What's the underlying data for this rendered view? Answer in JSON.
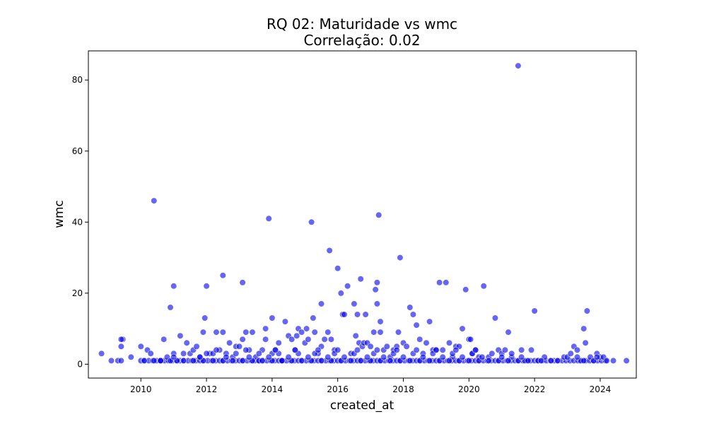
{
  "chart_data": {
    "type": "scatter",
    "title": "RQ 02: Maturidade vs wmc",
    "subtitle": "Correlação: 0.02",
    "xlabel": "created_at",
    "ylabel": "wmc",
    "xlim": [
      2008.4,
      2025.1
    ],
    "ylim": [
      -3.9,
      88.2
    ],
    "xticks": [
      2010,
      2012,
      2014,
      2016,
      2018,
      2020,
      2022,
      2024
    ],
    "yticks": [
      0,
      20,
      40,
      60,
      80
    ],
    "grid": false,
    "legend": "none",
    "color": "#0000ee",
    "points": [
      [
        2008.8,
        3
      ],
      [
        2009.1,
        1
      ],
      [
        2009.3,
        1
      ],
      [
        2009.4,
        1
      ],
      [
        2009.4,
        5
      ],
      [
        2009.45,
        7
      ],
      [
        2009.4,
        7
      ],
      [
        2009.7,
        2
      ],
      [
        2010.0,
        5
      ],
      [
        2010.1,
        1
      ],
      [
        2010.2,
        4
      ],
      [
        2010.3,
        3
      ],
      [
        2010.4,
        1
      ],
      [
        2010.4,
        46
      ],
      [
        2010.6,
        1
      ],
      [
        2010.7,
        7
      ],
      [
        2010.8,
        2
      ],
      [
        2010.9,
        16
      ],
      [
        2011.0,
        22
      ],
      [
        2011.0,
        3
      ],
      [
        2011.1,
        1
      ],
      [
        2011.2,
        8
      ],
      [
        2011.3,
        3
      ],
      [
        2011.4,
        6
      ],
      [
        2011.5,
        3
      ],
      [
        2011.6,
        4
      ],
      [
        2011.7,
        5
      ],
      [
        2011.8,
        2
      ],
      [
        2011.9,
        9
      ],
      [
        2011.95,
        13
      ],
      [
        2012.0,
        22
      ],
      [
        2012.1,
        3
      ],
      [
        2012.2,
        3
      ],
      [
        2012.3,
        9
      ],
      [
        2012.4,
        4
      ],
      [
        2012.5,
        25
      ],
      [
        2012.5,
        9
      ],
      [
        2012.6,
        3
      ],
      [
        2012.7,
        6
      ],
      [
        2012.8,
        2
      ],
      [
        2012.9,
        5
      ],
      [
        2013.0,
        5
      ],
      [
        2013.1,
        23
      ],
      [
        2013.1,
        7
      ],
      [
        2013.2,
        9
      ],
      [
        2013.3,
        4
      ],
      [
        2013.4,
        9
      ],
      [
        2013.5,
        2
      ],
      [
        2013.6,
        1
      ],
      [
        2013.7,
        4
      ],
      [
        2013.8,
        10
      ],
      [
        2013.8,
        7
      ],
      [
        2013.9,
        41
      ],
      [
        2014.0,
        13
      ],
      [
        2014.0,
        3
      ],
      [
        2014.1,
        4
      ],
      [
        2014.2,
        6
      ],
      [
        2014.3,
        1
      ],
      [
        2014.4,
        12
      ],
      [
        2014.5,
        8
      ],
      [
        2014.6,
        7
      ],
      [
        2014.7,
        4
      ],
      [
        2014.75,
        8
      ],
      [
        2014.8,
        10
      ],
      [
        2014.9,
        9
      ],
      [
        2015.0,
        6
      ],
      [
        2015.05,
        10
      ],
      [
        2015.1,
        7
      ],
      [
        2015.2,
        40
      ],
      [
        2015.25,
        13
      ],
      [
        2015.3,
        9
      ],
      [
        2015.4,
        3
      ],
      [
        2015.5,
        5
      ],
      [
        2015.5,
        17
      ],
      [
        2015.6,
        7
      ],
      [
        2015.7,
        9
      ],
      [
        2015.75,
        32
      ],
      [
        2015.8,
        7
      ],
      [
        2015.9,
        4
      ],
      [
        2016.0,
        27
      ],
      [
        2016.1,
        20
      ],
      [
        2016.15,
        14
      ],
      [
        2016.2,
        14
      ],
      [
        2016.3,
        22
      ],
      [
        2016.4,
        3
      ],
      [
        2016.5,
        17
      ],
      [
        2016.55,
        8
      ],
      [
        2016.6,
        14
      ],
      [
        2016.65,
        6
      ],
      [
        2016.7,
        24
      ],
      [
        2016.75,
        5
      ],
      [
        2016.8,
        6
      ],
      [
        2016.85,
        14
      ],
      [
        2016.9,
        6
      ],
      [
        2017.0,
        5
      ],
      [
        2017.1,
        9
      ],
      [
        2017.15,
        21
      ],
      [
        2017.2,
        23
      ],
      [
        2017.2,
        17
      ],
      [
        2017.25,
        42
      ],
      [
        2017.3,
        12
      ],
      [
        2017.3,
        9
      ],
      [
        2017.4,
        4
      ],
      [
        2017.5,
        5
      ],
      [
        2017.6,
        2
      ],
      [
        2017.7,
        4
      ],
      [
        2017.8,
        5
      ],
      [
        2017.85,
        9
      ],
      [
        2017.9,
        30
      ],
      [
        2018.0,
        6
      ],
      [
        2018.1,
        5
      ],
      [
        2018.2,
        16
      ],
      [
        2018.3,
        14
      ],
      [
        2018.4,
        11
      ],
      [
        2018.5,
        7
      ],
      [
        2018.6,
        3
      ],
      [
        2018.7,
        6
      ],
      [
        2018.8,
        12
      ],
      [
        2018.9,
        4
      ],
      [
        2019.0,
        4
      ],
      [
        2019.1,
        23
      ],
      [
        2019.2,
        4
      ],
      [
        2019.3,
        23
      ],
      [
        2019.4,
        6
      ],
      [
        2019.5,
        2
      ],
      [
        2019.6,
        5
      ],
      [
        2019.7,
        5
      ],
      [
        2019.8,
        10
      ],
      [
        2019.9,
        21
      ],
      [
        2020.0,
        7
      ],
      [
        2020.05,
        7
      ],
      [
        2020.1,
        3
      ],
      [
        2020.2,
        4
      ],
      [
        2020.3,
        2
      ],
      [
        2020.45,
        22
      ],
      [
        2020.6,
        2
      ],
      [
        2020.8,
        13
      ],
      [
        2020.9,
        4
      ],
      [
        2021.0,
        3
      ],
      [
        2021.1,
        4
      ],
      [
        2021.2,
        9
      ],
      [
        2021.3,
        2
      ],
      [
        2021.5,
        84
      ],
      [
        2021.6,
        4
      ],
      [
        2021.7,
        1
      ],
      [
        2021.9,
        4
      ],
      [
        2022.0,
        15
      ],
      [
        2022.1,
        1
      ],
      [
        2022.3,
        2
      ],
      [
        2022.5,
        1
      ],
      [
        2022.7,
        1
      ],
      [
        2022.9,
        2
      ],
      [
        2023.0,
        2
      ],
      [
        2023.1,
        3
      ],
      [
        2023.2,
        5
      ],
      [
        2023.3,
        4
      ],
      [
        2023.4,
        1
      ],
      [
        2023.5,
        10
      ],
      [
        2023.55,
        6
      ],
      [
        2023.6,
        15
      ],
      [
        2023.7,
        2
      ],
      [
        2023.8,
        1
      ],
      [
        2023.9,
        3
      ],
      [
        2024.0,
        2
      ],
      [
        2024.1,
        2
      ],
      [
        2024.2,
        1
      ],
      [
        2024.4,
        1
      ],
      [
        2024.8,
        1
      ],
      [
        2010.6,
        1
      ],
      [
        2010.9,
        1
      ],
      [
        2011.3,
        1
      ],
      [
        2011.6,
        1
      ],
      [
        2011.9,
        1
      ],
      [
        2012.2,
        1
      ],
      [
        2012.5,
        1
      ],
      [
        2012.8,
        1
      ],
      [
        2013.1,
        1
      ],
      [
        2013.4,
        1
      ],
      [
        2013.7,
        1
      ],
      [
        2014.0,
        1
      ],
      [
        2014.3,
        1
      ],
      [
        2014.6,
        1
      ],
      [
        2014.9,
        1
      ],
      [
        2015.2,
        1
      ],
      [
        2015.5,
        1
      ],
      [
        2015.8,
        1
      ],
      [
        2016.1,
        1
      ],
      [
        2016.4,
        1
      ],
      [
        2016.7,
        1
      ],
      [
        2017.0,
        1
      ],
      [
        2017.3,
        1
      ],
      [
        2017.6,
        1
      ],
      [
        2017.9,
        1
      ],
      [
        2018.2,
        1
      ],
      [
        2018.5,
        1
      ],
      [
        2018.8,
        1
      ],
      [
        2019.1,
        1
      ],
      [
        2019.4,
        1
      ],
      [
        2019.7,
        1
      ],
      [
        2020.0,
        1
      ],
      [
        2020.3,
        1
      ],
      [
        2020.6,
        1
      ],
      [
        2020.9,
        1
      ],
      [
        2021.2,
        1
      ],
      [
        2021.5,
        1
      ],
      [
        2021.8,
        1
      ],
      [
        2022.2,
        1
      ],
      [
        2023.5,
        1
      ],
      [
        2011.0,
        2
      ],
      [
        2011.8,
        2
      ],
      [
        2012.6,
        2
      ],
      [
        2013.3,
        2
      ],
      [
        2013.9,
        2
      ],
      [
        2014.5,
        2
      ],
      [
        2015.1,
        2
      ],
      [
        2015.7,
        2
      ],
      [
        2016.2,
        2
      ],
      [
        2016.9,
        2
      ],
      [
        2017.4,
        2
      ],
      [
        2018.0,
        2
      ],
      [
        2018.6,
        2
      ],
      [
        2019.2,
        2
      ],
      [
        2019.8,
        2
      ],
      [
        2020.4,
        2
      ],
      [
        2021.0,
        2
      ],
      [
        2021.6,
        2
      ],
      [
        2023.3,
        2
      ],
      [
        2023.9,
        2
      ],
      [
        2012.0,
        3
      ],
      [
        2012.9,
        3
      ],
      [
        2013.6,
        3
      ],
      [
        2014.2,
        3
      ],
      [
        2014.8,
        3
      ],
      [
        2015.3,
        3
      ],
      [
        2015.9,
        3
      ],
      [
        2016.5,
        3
      ],
      [
        2017.1,
        3
      ],
      [
        2017.7,
        3
      ],
      [
        2018.3,
        3
      ],
      [
        2018.9,
        3
      ],
      [
        2019.5,
        3
      ],
      [
        2020.1,
        3
      ],
      [
        2020.7,
        3
      ],
      [
        2021.3,
        3
      ],
      [
        2012.3,
        4
      ],
      [
        2013.2,
        4
      ],
      [
        2014.1,
        4
      ],
      [
        2014.7,
        4
      ],
      [
        2015.4,
        4
      ],
      [
        2016.0,
        4
      ],
      [
        2016.6,
        4
      ],
      [
        2017.2,
        4
      ],
      [
        2017.8,
        4
      ],
      [
        2018.4,
        4
      ],
      [
        2019.0,
        4
      ],
      [
        2019.6,
        4
      ],
      [
        2020.2,
        4
      ]
    ],
    "dense_band": {
      "x_start": 2010.0,
      "x_end": 2024.2,
      "step": 0.12,
      "y": 1
    }
  }
}
